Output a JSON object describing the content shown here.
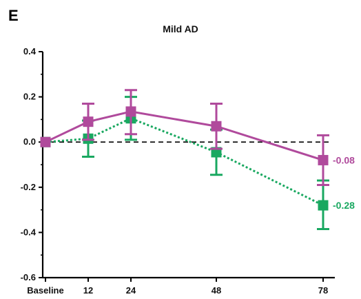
{
  "panel_letter": "E",
  "chart_data": {
    "type": "line",
    "title": "Mild AD",
    "xlabel": "",
    "ylabel": "",
    "x_tick_labels": [
      "Baseline",
      "12",
      "24",
      "48",
      "78"
    ],
    "x": [
      0,
      12,
      24,
      48,
      78
    ],
    "ylim": [
      -0.6,
      0.4
    ],
    "y_ticks": [
      "0.4",
      "0.2",
      "0.0",
      "-0.2",
      "-0.4",
      "-0.6"
    ],
    "y_tick_values": [
      0.4,
      0.2,
      0.0,
      -0.2,
      -0.4,
      -0.6
    ],
    "reference_line": 0.0,
    "grid": false,
    "series": [
      {
        "values": [
          0.0,
          0.09,
          0.135,
          0.07,
          -0.08
        ],
        "err_low": [
          0.0,
          0.01,
          0.035,
          -0.03,
          -0.19
        ],
        "err_high": [
          0.0,
          0.17,
          0.23,
          0.17,
          0.03
        ],
        "color": "#b04a9c",
        "line_style": "solid",
        "end_label": "-0.08"
      },
      {
        "values": [
          0.0,
          0.015,
          0.105,
          -0.045,
          -0.28
        ],
        "err_low": [
          0.0,
          -0.065,
          0.01,
          -0.145,
          -0.385
        ],
        "err_high": [
          0.0,
          0.095,
          0.2,
          0.055,
          -0.17
        ],
        "color": "#19a860",
        "line_style": "dotted",
        "end_label": "-0.28"
      }
    ]
  }
}
